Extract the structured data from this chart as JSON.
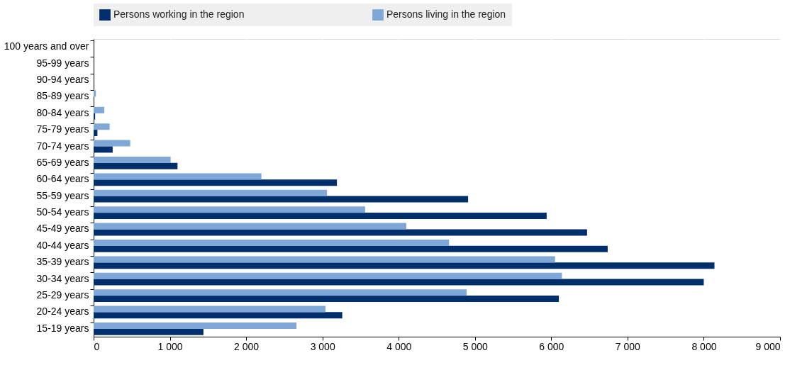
{
  "chart_data": {
    "type": "bar",
    "orientation": "horizontal",
    "categories": [
      "100 years and over",
      "95-99 years",
      "90-94 years",
      "85-89 years",
      "80-84 years",
      "75-79 years",
      "70-74 years",
      "65-69 years",
      "60-64 years",
      "55-59 years",
      "50-54 years",
      "45-49 years",
      "40-44 years",
      "35-39 years",
      "30-34 years",
      "25-29 years",
      "20-24 years",
      "15-19 years"
    ],
    "series": [
      {
        "name": "Persons working in the region",
        "color": "#002f6c",
        "values": [
          0,
          0,
          0,
          0,
          20,
          50,
          250,
          1100,
          3190,
          4910,
          5940,
          6470,
          6740,
          8140,
          8000,
          6100,
          3260,
          1440
        ]
      },
      {
        "name": "Persons living in the region",
        "color": "#7fa8d9",
        "values": [
          0,
          0,
          0,
          30,
          140,
          210,
          480,
          1010,
          2200,
          3060,
          3560,
          4100,
          4660,
          6050,
          6140,
          4890,
          3040,
          2660
        ]
      }
    ],
    "xlim": [
      0,
      9000
    ],
    "xticks": [
      0,
      {
        "value": 1000,
        "label": "1 000"
      },
      {
        "value": 2000,
        "label": "2 000"
      },
      {
        "value": 3000,
        "label": "3 000"
      },
      {
        "value": 4000,
        "label": "4 000"
      },
      {
        "value": 5000,
        "label": "5 000"
      },
      {
        "value": 6000,
        "label": "6 000"
      },
      {
        "value": 7000,
        "label": "7 000"
      },
      {
        "value": 8000,
        "label": "8 000"
      },
      {
        "value": 9000,
        "label": "9 000"
      }
    ],
    "grid": true,
    "legend": "top"
  }
}
